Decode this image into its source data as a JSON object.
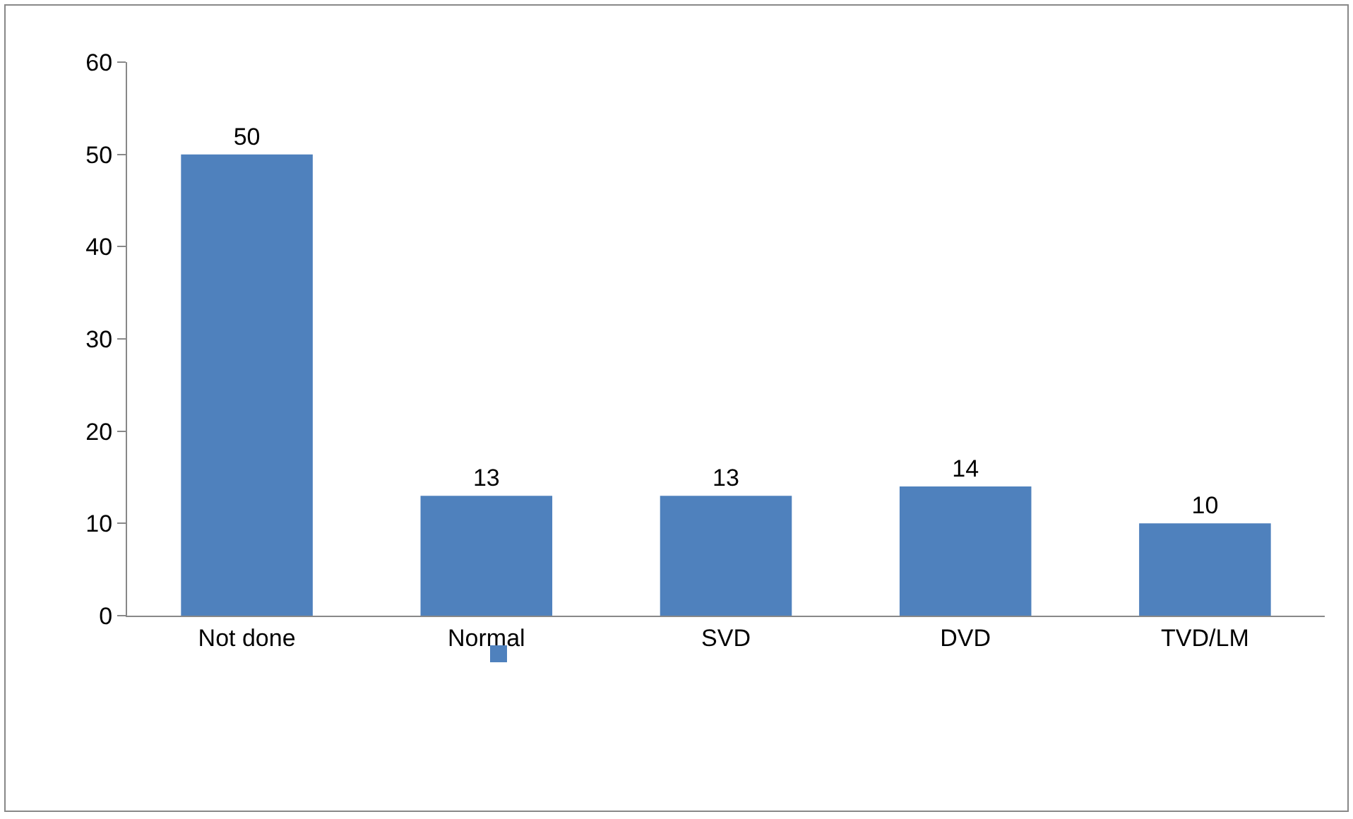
{
  "chart_data": {
    "type": "bar",
    "categories": [
      "Not done",
      "Normal",
      "SVD",
      "DVD",
      "TVD/LM"
    ],
    "series": [
      {
        "color": "#4f81bd",
        "values": [
          50,
          13,
          13,
          14,
          10
        ]
      }
    ],
    "ylim": [
      0,
      60
    ],
    "yticks": [
      0,
      10,
      20,
      30,
      40,
      50,
      60
    ],
    "grid": false,
    "data_labels": true
  }
}
